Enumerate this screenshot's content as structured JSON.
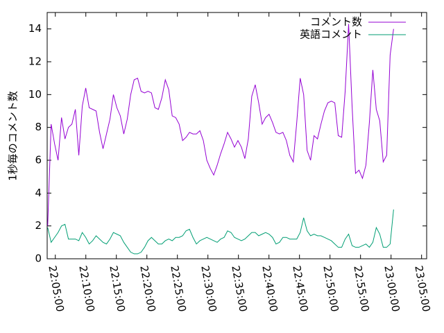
{
  "chart_data": {
    "type": "line",
    "ylabel": "1秒毎のコメント数",
    "x": [
      "22:03:45",
      "22:04:19",
      "22:04:53",
      "22:05:27",
      "22:06:01",
      "22:06:35",
      "22:07:09",
      "22:07:43",
      "22:08:17",
      "22:08:51",
      "22:09:25",
      "22:09:59",
      "22:10:33",
      "22:11:07",
      "22:11:41",
      "22:12:15",
      "22:12:49",
      "22:13:23",
      "22:13:57",
      "22:14:31",
      "22:15:05",
      "22:15:39",
      "22:16:13",
      "22:16:47",
      "22:17:21",
      "22:17:55",
      "22:18:29",
      "22:19:03",
      "22:19:37",
      "22:20:11",
      "22:20:45",
      "22:21:19",
      "22:21:53",
      "22:22:27",
      "22:23:01",
      "22:23:35",
      "22:24:09",
      "22:24:43",
      "22:25:17",
      "22:25:51",
      "22:26:25",
      "22:26:59",
      "22:27:33",
      "22:28:07",
      "22:28:41",
      "22:29:15",
      "22:29:49",
      "22:30:23",
      "22:30:57",
      "22:31:31",
      "22:32:05",
      "22:32:39",
      "22:33:13",
      "22:33:47",
      "22:34:21",
      "22:34:55",
      "22:35:29",
      "22:36:03",
      "22:36:37",
      "22:37:11",
      "22:37:45",
      "22:38:19",
      "22:38:53",
      "22:39:27",
      "22:40:01",
      "22:40:35",
      "22:41:09",
      "22:41:43",
      "22:42:17",
      "22:42:51",
      "22:43:25",
      "22:43:59",
      "22:44:33",
      "22:45:07",
      "22:45:41",
      "22:46:15",
      "22:46:49",
      "22:47:23",
      "22:47:57",
      "22:48:31",
      "22:49:05",
      "22:49:39",
      "22:50:13",
      "22:50:47",
      "22:51:21",
      "22:51:55",
      "22:52:29",
      "22:53:03",
      "22:53:37",
      "22:54:11",
      "22:54:45",
      "22:55:19",
      "22:55:53",
      "22:56:27",
      "22:57:01",
      "22:57:35",
      "22:58:09",
      "22:58:43",
      "22:59:17",
      "22:59:51",
      "23:00:25"
    ],
    "series": [
      {
        "name": "コメント数",
        "color": "#9400d3",
        "values": [
          2,
          8.2,
          7,
          6,
          8.6,
          7.3,
          8,
          8.2,
          9.1,
          6.3,
          9.3,
          10.4,
          9.2,
          9.1,
          9,
          7.7,
          6.7,
          7.6,
          8.5,
          10,
          9.2,
          8.7,
          7.6,
          8.5,
          10,
          10.9,
          11,
          10.2,
          10.1,
          10.2,
          10.1,
          9.2,
          9.1,
          9.8,
          10.9,
          10.3,
          8.7,
          8.6,
          8.2,
          7.2,
          7.4,
          7.7,
          7.6,
          7.6,
          7.8,
          7.2,
          6,
          5.5,
          5.1,
          5.7,
          6.4,
          7,
          7.7,
          7.3,
          6.8,
          7.2,
          6.8,
          6.1,
          7.3,
          9.9,
          10.6,
          9.5,
          8.2,
          8.6,
          8.8,
          8.3,
          7.7,
          7.6,
          7.7,
          7.2,
          6.3,
          5.9,
          8.3,
          11,
          10,
          6.6,
          6,
          7.5,
          7.3,
          8.2,
          9,
          9.5,
          9.6,
          9.5,
          7.5,
          7.4,
          10.2,
          14.3,
          9.3,
          5.2,
          5.4,
          4.9,
          5.7,
          8.3,
          11.5,
          9.1,
          8.4,
          5.9,
          6.3,
          12.4,
          14
        ]
      },
      {
        "name": "英語コメント",
        "color": "#009e73",
        "values": [
          1.9,
          1,
          1.3,
          1.6,
          2,
          2.1,
          1.2,
          1.2,
          1.2,
          1.1,
          1.6,
          1.3,
          0.9,
          1.1,
          1.4,
          1.2,
          1,
          0.9,
          1.2,
          1.6,
          1.5,
          1.4,
          1,
          0.7,
          0.4,
          0.3,
          0.3,
          0.4,
          0.7,
          1.1,
          1.3,
          1.1,
          0.9,
          0.9,
          1.1,
          1.2,
          1.1,
          1.3,
          1.3,
          1.4,
          1.7,
          1.8,
          1.3,
          0.9,
          1.1,
          1.2,
          1.3,
          1.2,
          1.1,
          1,
          1.2,
          1.3,
          1.7,
          1.6,
          1.3,
          1.2,
          1.1,
          1.2,
          1.4,
          1.6,
          1.6,
          1.4,
          1.5,
          1.6,
          1.5,
          1.3,
          0.9,
          1,
          1.3,
          1.3,
          1.2,
          1.2,
          1.2,
          1.6,
          2.5,
          1.7,
          1.4,
          1.5,
          1.4,
          1.4,
          1.3,
          1.2,
          1.1,
          0.9,
          0.7,
          0.7,
          1.2,
          1.5,
          0.8,
          0.7,
          0.7,
          0.8,
          0.9,
          0.7,
          1,
          1.9,
          1.5,
          0.7,
          0.7,
          0.9,
          3
        ]
      }
    ],
    "xlim": [
      "22:03:40",
      "23:05:50"
    ],
    "xticks": [
      "22:05:00",
      "22:10:00",
      "22:15:00",
      "22:20:00",
      "22:25:00",
      "22:30:00",
      "22:35:00",
      "22:40:00",
      "22:45:00",
      "22:50:00",
      "22:55:00",
      "23:00:00",
      "23:05:00"
    ],
    "ylim": [
      0,
      15
    ],
    "yticks": [
      0,
      2,
      4,
      6,
      8,
      10,
      12,
      14
    ],
    "legend": "top-right"
  }
}
